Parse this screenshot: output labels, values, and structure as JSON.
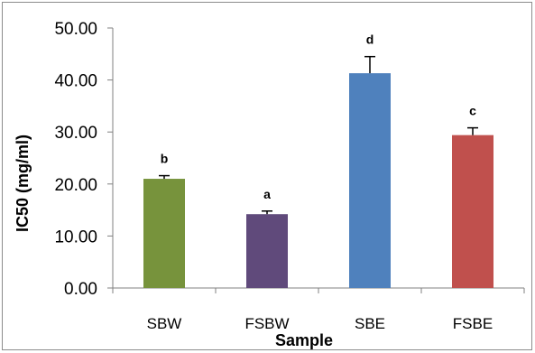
{
  "chart_data": {
    "type": "bar",
    "title": "",
    "xlabel": "Sample",
    "ylabel": "IC50 (mg/ml)",
    "ylim": [
      0,
      50
    ],
    "yticks": [
      "0.00",
      "10.00",
      "20.00",
      "30.00",
      "40.00",
      "50.00"
    ],
    "ytick_values": [
      0,
      10,
      20,
      30,
      40,
      50
    ],
    "categories": [
      "SBW",
      "FSBW",
      "SBE",
      "FSBE"
    ],
    "values": [
      21.0,
      14.2,
      41.3,
      29.4
    ],
    "error": [
      0.6,
      0.6,
      3.2,
      1.4
    ],
    "significance": [
      "b",
      "a",
      "d",
      "c"
    ],
    "colors": [
      "#77933C",
      "#604A7B",
      "#4F81BD",
      "#C0504D"
    ],
    "grid": false,
    "legend": "none"
  }
}
